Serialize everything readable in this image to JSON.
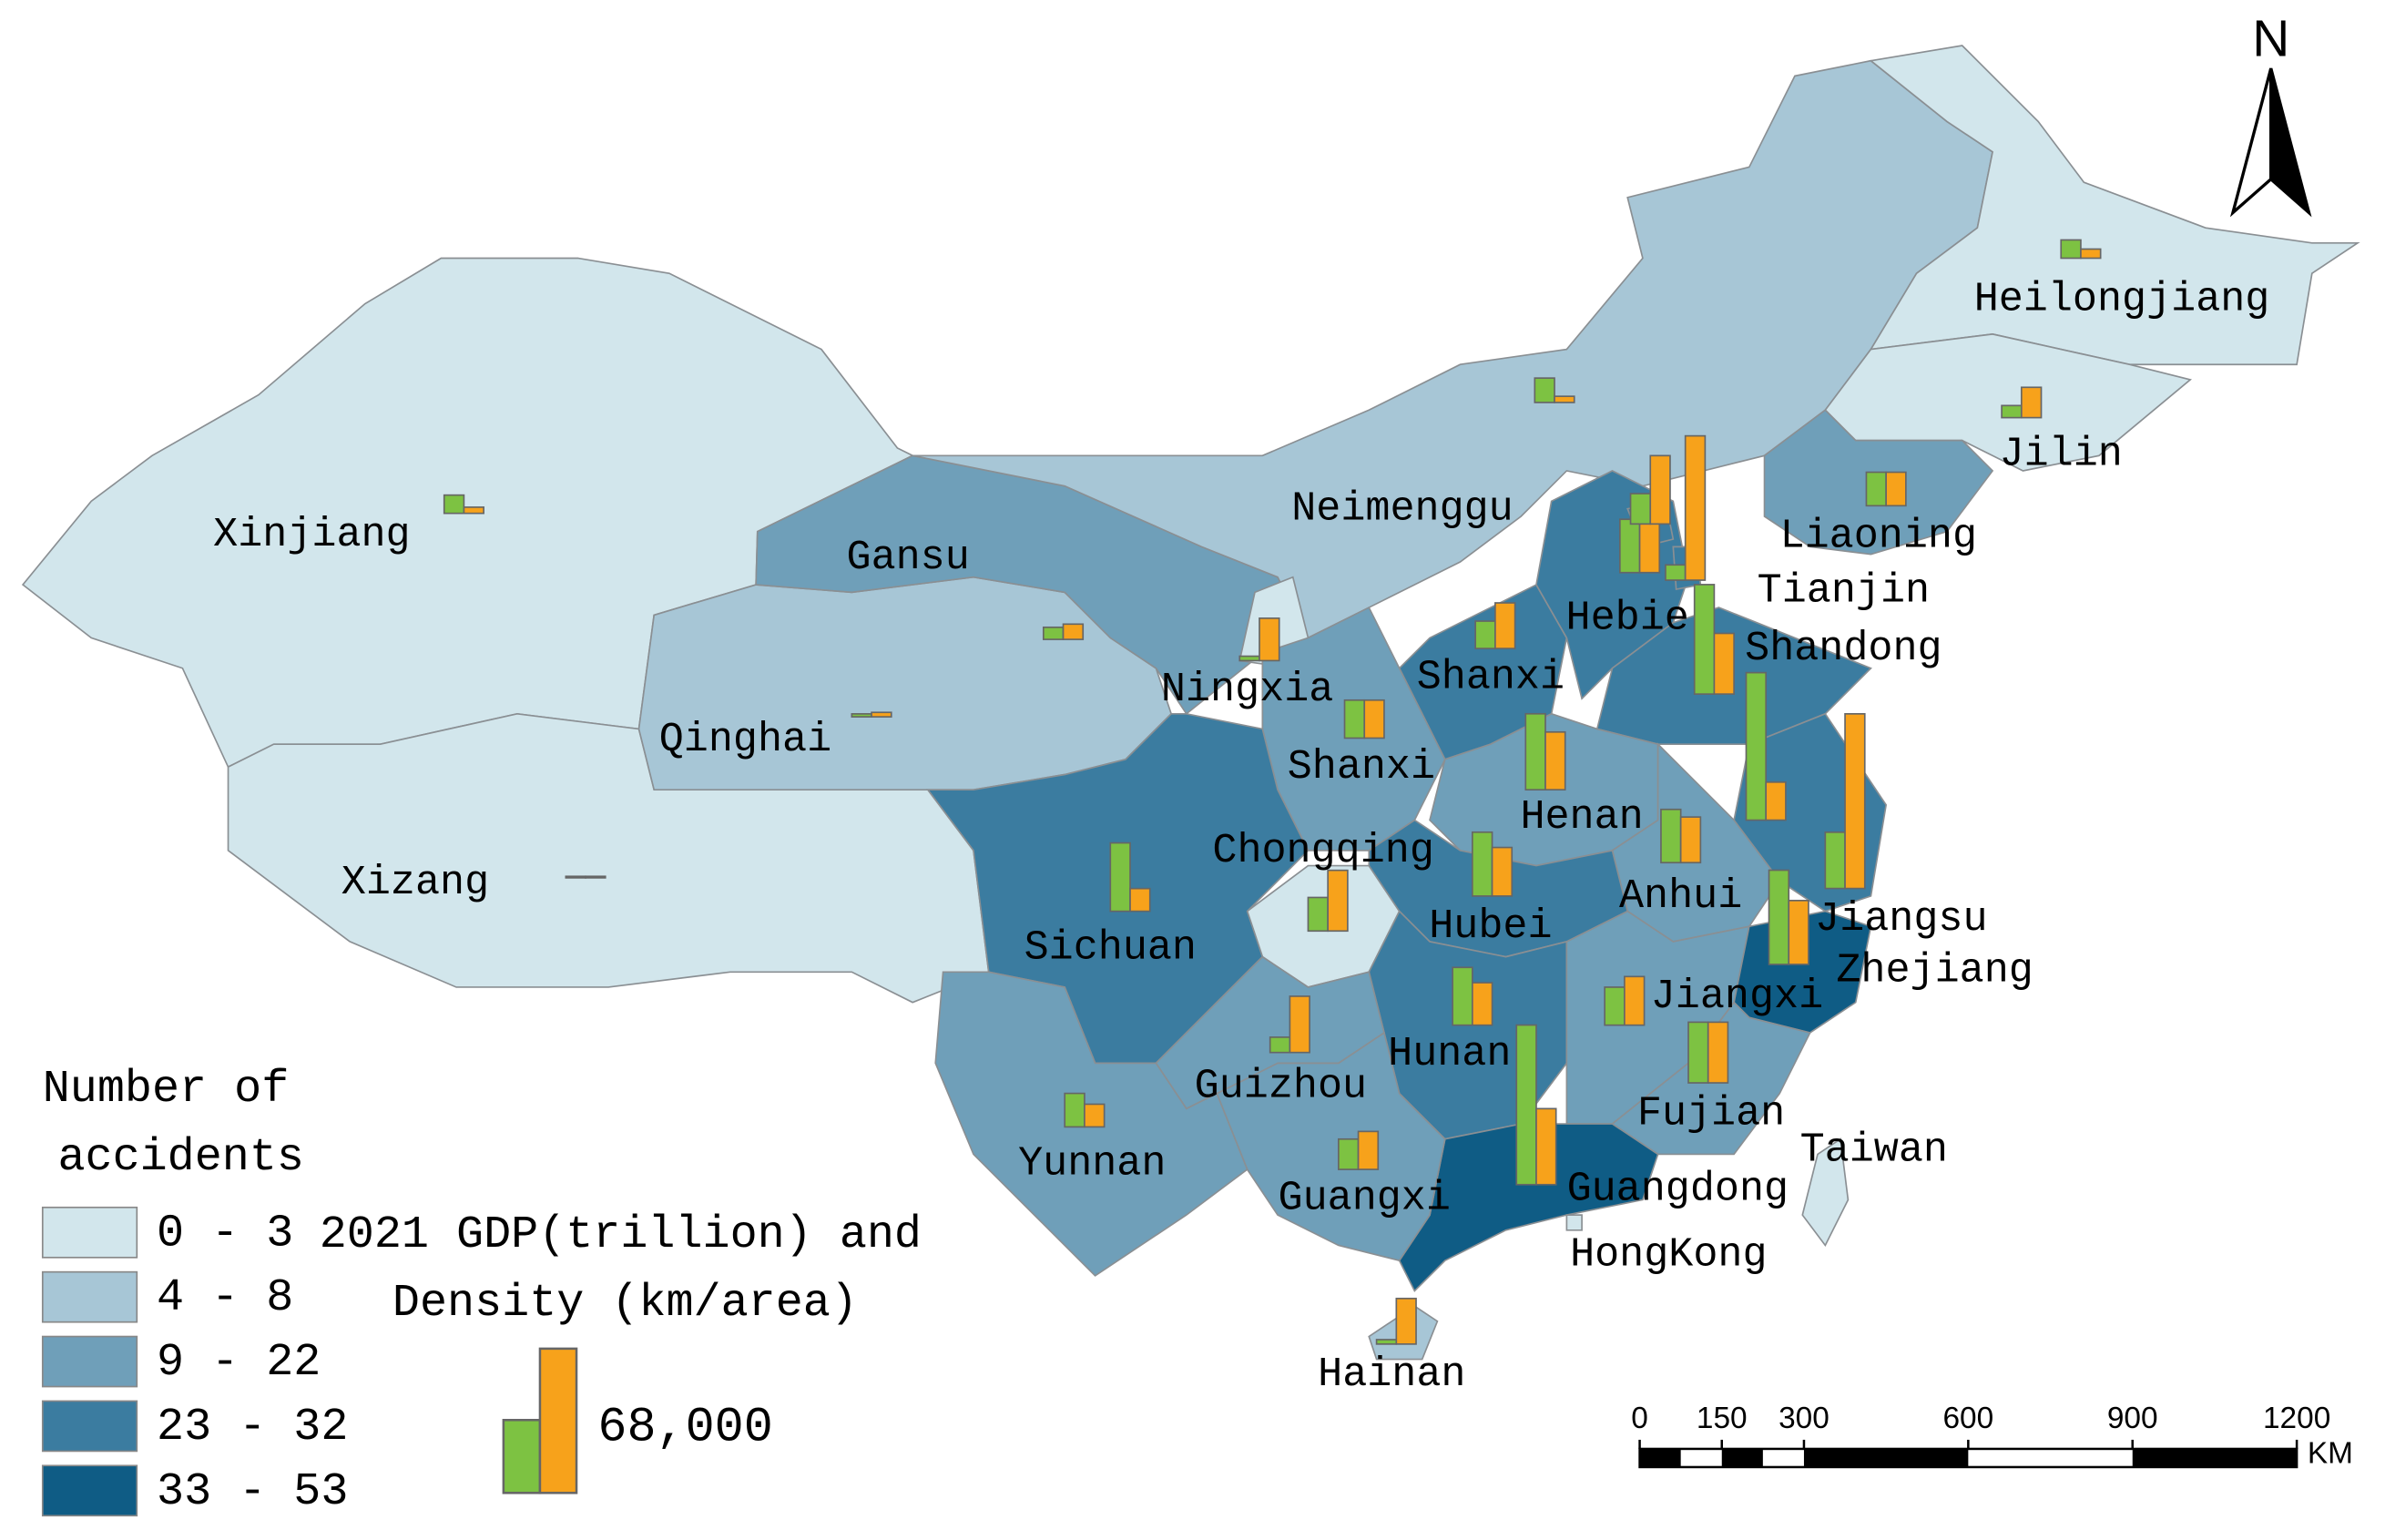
{
  "map": {
    "provinces": [
      {
        "name": "Xinjiang",
        "accident_class": 0,
        "gdp": 8600,
        "density": 2900
      },
      {
        "name": "Xizang",
        "accident_class": 0,
        "gdp": 700,
        "density": 700
      },
      {
        "name": "Qinghai",
        "accident_class": 1,
        "gdp": 1400,
        "density": 2100
      },
      {
        "name": "Gansu",
        "accident_class": 2,
        "gdp": 5700,
        "density": 7200
      },
      {
        "name": "Neimenggu",
        "accident_class": 1,
        "gdp": 11500,
        "density": 2900
      },
      {
        "name": "Heilongjiang",
        "accident_class": 0,
        "gdp": 8600,
        "density": 4300
      },
      {
        "name": "Jilin",
        "accident_class": 0,
        "gdp": 5700,
        "density": 14300
      },
      {
        "name": "Liaoning",
        "accident_class": 2,
        "gdp": 15800,
        "density": 15800
      },
      {
        "name": "Ningxia",
        "accident_class": 0,
        "gdp": 2100,
        "density": 20000
      },
      {
        "name": "Shanxi",
        "accident_class": 3,
        "gdp": 12900,
        "density": 21500
      },
      {
        "name": "Hebie",
        "accident_class": 3,
        "gdp": 25100,
        "density": 26500
      },
      {
        "name": "Tianjin",
        "accident_class": 3,
        "gdp": 7200,
        "density": 68000
      },
      {
        "name": null,
        "accident_class": 3,
        "gdp": 14300,
        "density": 32200
      },
      {
        "name": "Shandong",
        "accident_class": 3,
        "gdp": 51600,
        "density": 28600
      },
      {
        "name": "Shanxi",
        "accident_class": 2,
        "gdp": 17900,
        "density": 17900
      },
      {
        "name": "Henan",
        "accident_class": 2,
        "gdp": 35800,
        "density": 27200
      },
      {
        "name": null,
        "accident_class": null,
        "gdp": 69500,
        "density": 17900
      },
      {
        "name": "Jiangsu",
        "accident_class": 3,
        "gdp": 26500,
        "density": 82300
      },
      {
        "name": "Anhui",
        "accident_class": 2,
        "gdp": 25100,
        "density": 21500
      },
      {
        "name": "Chongqing",
        "accident_class": 0,
        "gdp": 15800,
        "density": 28600
      },
      {
        "name": "Sichuan",
        "accident_class": 3,
        "gdp": 32200,
        "density": 10700
      },
      {
        "name": "Hubei",
        "accident_class": 3,
        "gdp": 30100,
        "density": 22900
      },
      {
        "name": "Hunan",
        "accident_class": 3,
        "gdp": 27200,
        "density": 20000
      },
      {
        "name": "Jiangxi",
        "accident_class": 2,
        "gdp": 17900,
        "density": 22900
      },
      {
        "name": "Zhejiang",
        "accident_class": 4,
        "gdp": 44400,
        "density": 30100
      },
      {
        "name": "Fujian",
        "accident_class": 2,
        "gdp": 28600,
        "density": 28600
      },
      {
        "name": "Guangdong",
        "accident_class": 4,
        "gdp": 75200,
        "density": 35800
      },
      {
        "name": "Guangxi",
        "accident_class": 2,
        "gdp": 14300,
        "density": 17900
      },
      {
        "name": "Guizhou",
        "accident_class": 2,
        "gdp": 7200,
        "density": 26500
      },
      {
        "name": "Yunnan",
        "accident_class": 2,
        "gdp": 15800,
        "density": 10700
      },
      {
        "name": "Hainan",
        "accident_class": 1,
        "gdp": 2100,
        "density": 21500
      },
      {
        "name": "Taiwan",
        "accident_class": 0,
        "gdp": null,
        "density": null
      },
      {
        "name": "HongKong",
        "accident_class": 0,
        "gdp": null,
        "density": null
      }
    ],
    "accident_legend": {
      "title_lines": [
        "Number of",
        "accidents"
      ],
      "classes": [
        {
          "label": "0 - 3",
          "color": "#d2e6ec"
        },
        {
          "label": "4 - 8",
          "color": "#a7c6d6"
        },
        {
          "label": "9 - 22",
          "color": "#6f9fb9"
        },
        {
          "label": "23 - 32",
          "color": "#3b7ca0"
        },
        {
          "label": "33 - 53",
          "color": "#0f5c85"
        }
      ]
    },
    "bar_legend": {
      "title_lines": [
        "2021 GDP(trillion) and",
        "Density (km/area)"
      ],
      "value": {
        "value": 68000,
        "label": "68,000"
      },
      "colors": {
        "gdp": "#7dc242",
        "density": "#f7a21b"
      }
    },
    "north": "N",
    "scale_bar": {
      "ticks": [
        0,
        150,
        300,
        600,
        900,
        1200
      ],
      "unit": "KM"
    }
  }
}
